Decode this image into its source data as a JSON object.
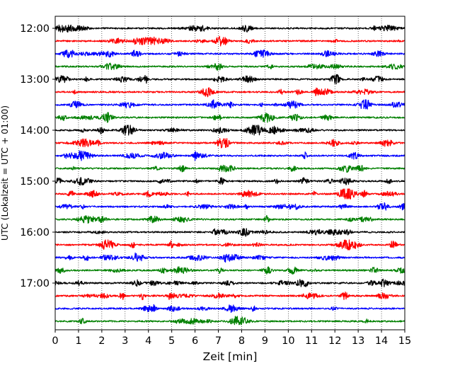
{
  "chart_data": {
    "type": "line",
    "title": "",
    "xlabel": "Zeit  [min]",
    "ylabel": "UTC (Lokalzeit = UTC + 01:00)",
    "xlim": [
      0,
      15
    ],
    "x_ticks": [
      "0",
      "1",
      "2",
      "3",
      "4",
      "5",
      "6",
      "7",
      "8",
      "9",
      "10",
      "11",
      "12",
      "13",
      "14",
      "15"
    ],
    "y_ticks": [
      {
        "label": "12:00",
        "row": 0
      },
      {
        "label": "13:00",
        "row": 4
      },
      {
        "label": "14:00",
        "row": 8
      },
      {
        "label": "15:00",
        "row": 12
      },
      {
        "label": "16:00",
        "row": 16
      },
      {
        "label": "17:00",
        "row": 20
      }
    ],
    "trace_interval_min": 15,
    "trace_start": "12:00",
    "trace_end": "17:45",
    "trace_count": 24,
    "trace_colors": [
      "#000000",
      "#ff0000",
      "#0000ff",
      "#008000"
    ],
    "vertical_grid": "dotted",
    "legend": "none"
  }
}
